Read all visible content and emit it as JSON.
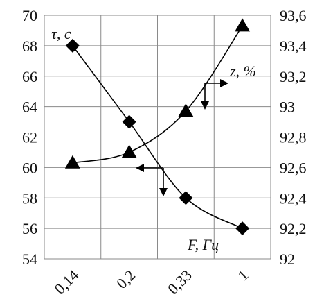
{
  "chart_data": {
    "type": "line",
    "categories": [
      "0,14",
      "0,2",
      "0,33",
      "1"
    ],
    "y_left": {
      "min": 54,
      "max": 70,
      "step": 2,
      "ticks": [
        "54",
        "56",
        "58",
        "60",
        "62",
        "64",
        "66",
        "68",
        "70"
      ]
    },
    "y_right": {
      "min": 92,
      "max": 93.6,
      "step": 0.2,
      "ticks": [
        "92",
        "92,2",
        "92,4",
        "92,6",
        "92,8",
        "93",
        "93,2",
        "93,4",
        "93,6"
      ]
    },
    "series": [
      {
        "marker": "diamond",
        "axis": "left",
        "values": [
          68,
          63,
          58,
          56
        ]
      },
      {
        "marker": "triangle",
        "axis": "right",
        "values": [
          92.63,
          92.7,
          92.97,
          93.53
        ]
      }
    ],
    "annotations": {
      "tau_label": "τ, с",
      "z_label": "z, %",
      "f_label": "F, Гц"
    },
    "grid": true,
    "colors": {
      "grid": "#8a8a8a",
      "marks": "#000000"
    }
  }
}
